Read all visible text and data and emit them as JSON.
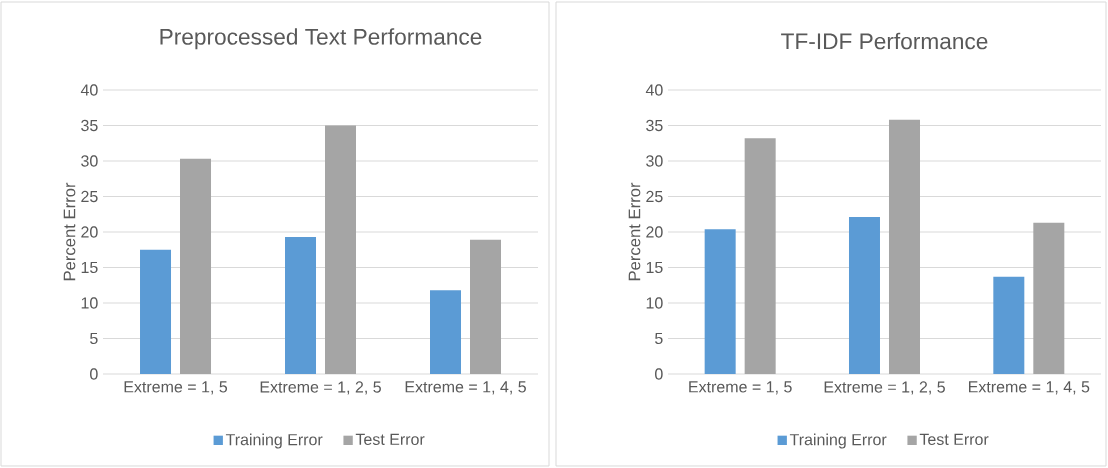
{
  "chart_data": [
    {
      "type": "bar",
      "title": "Preprocessed Text Performance",
      "ylabel": "Percent Error",
      "categories": [
        "Extreme = 1, 5",
        "Extreme = 1, 2, 5",
        "Extreme = 1, 4, 5"
      ],
      "series": [
        {
          "name": "Training Error",
          "color": "#5b9bd5",
          "values": [
            17.5,
            19.3,
            11.8
          ]
        },
        {
          "name": "Test Error",
          "color": "#a5a5a5",
          "values": [
            30.3,
            35.0,
            18.9
          ]
        }
      ],
      "ylim": [
        0,
        40
      ],
      "yticks": [
        0,
        5,
        10,
        15,
        20,
        25,
        30,
        35,
        40
      ],
      "grid": "y",
      "legend": "bottom"
    },
    {
      "type": "bar",
      "title": "TF-IDF Performance",
      "ylabel": "Percent Error",
      "categories": [
        "Extreme = 1, 5",
        "Extreme = 1, 2, 5",
        "Extreme = 1, 4, 5"
      ],
      "series": [
        {
          "name": "Training Error",
          "color": "#5b9bd5",
          "values": [
            20.4,
            22.1,
            13.7
          ]
        },
        {
          "name": "Test Error",
          "color": "#a5a5a5",
          "values": [
            33.2,
            35.8,
            21.3
          ]
        }
      ],
      "ylim": [
        0,
        40
      ],
      "yticks": [
        0,
        5,
        10,
        15,
        20,
        25,
        30,
        35,
        40
      ],
      "grid": "y",
      "legend": "bottom"
    }
  ]
}
